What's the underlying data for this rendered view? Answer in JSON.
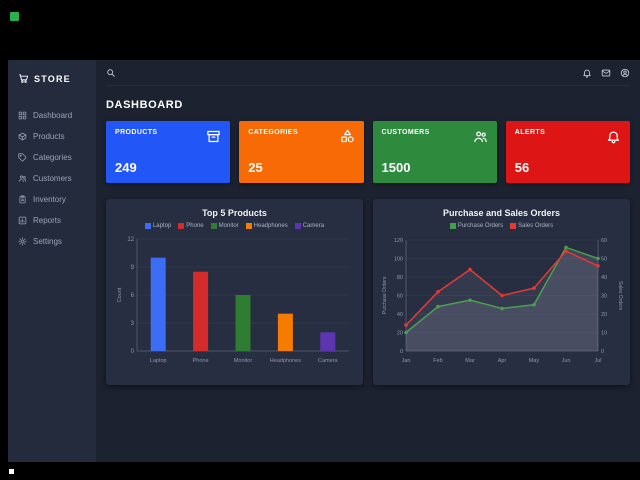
{
  "frame": {
    "recording_indicator_color": "#27b24a",
    "progress_marker_color": "#ffffff"
  },
  "sidebar": {
    "logo": "STORE",
    "logo_icon": "cart",
    "items": [
      {
        "label": "Dashboard",
        "icon": "grid"
      },
      {
        "label": "Products",
        "icon": "box"
      },
      {
        "label": "Categories",
        "icon": "tag"
      },
      {
        "label": "Customers",
        "icon": "people"
      },
      {
        "label": "Inventory",
        "icon": "clipboard"
      },
      {
        "label": "Reports",
        "icon": "report"
      },
      {
        "label": "Settings",
        "icon": "gear"
      }
    ]
  },
  "topbar": {
    "left_icons": [
      "search"
    ],
    "right_icons": [
      "bell",
      "mail",
      "user"
    ]
  },
  "page": {
    "title": "DASHBOARD"
  },
  "cards": [
    {
      "label": "PRODUCTS",
      "value": "249",
      "color": "#2356f6",
      "icon": "archive"
    },
    {
      "label": "CATEGORIES",
      "value": "25",
      "color": "#f86a05",
      "icon": "category"
    },
    {
      "label": "CUSTOMERS",
      "value": "1500",
      "color": "#2e8b3d",
      "icon": "people"
    },
    {
      "label": "ALERTS",
      "value": "56",
      "color": "#dd1515",
      "icon": "bell"
    }
  ],
  "chart_data": [
    {
      "type": "bar",
      "title": "Top 5 Products",
      "categories": [
        "Laptop",
        "Phone",
        "Monitor",
        "Headphones",
        "Camera"
      ],
      "values": [
        10,
        8.5,
        6,
        4,
        2
      ],
      "series_colors": [
        "#3d6df2",
        "#d62b2b",
        "#2e7d32",
        "#f57c00",
        "#5e35b1"
      ],
      "xlabel": "",
      "ylabel": "Count",
      "ylim": [
        0,
        12
      ],
      "yticks": [
        0,
        3,
        6,
        9,
        12
      ],
      "grid": true,
      "legend_position": "top"
    },
    {
      "type": "line",
      "title": "Purchase and Sales Orders",
      "x": [
        "Jan",
        "Feb",
        "Mar",
        "Apr",
        "May",
        "Jun",
        "Jul"
      ],
      "series": [
        {
          "name": "Purchase Orders",
          "color": "#43a047",
          "axis": "left",
          "values": [
            20,
            48,
            55,
            46,
            50,
            112,
            100
          ]
        },
        {
          "name": "Sales Orders",
          "color": "#e53935",
          "axis": "right",
          "values": [
            14,
            32,
            44,
            30,
            34,
            54,
            46
          ]
        }
      ],
      "ylabel_left": "Purchase Orders",
      "ylabel_right": "Sales Orders",
      "ylim_left": [
        0,
        120
      ],
      "ylim_right": [
        0,
        60
      ],
      "yticks_left": [
        0,
        20,
        40,
        60,
        80,
        100,
        120
      ],
      "yticks_right": [
        0,
        10,
        20,
        30,
        40,
        50,
        60
      ],
      "grid": true,
      "area_fill": true,
      "legend_position": "top"
    }
  ]
}
